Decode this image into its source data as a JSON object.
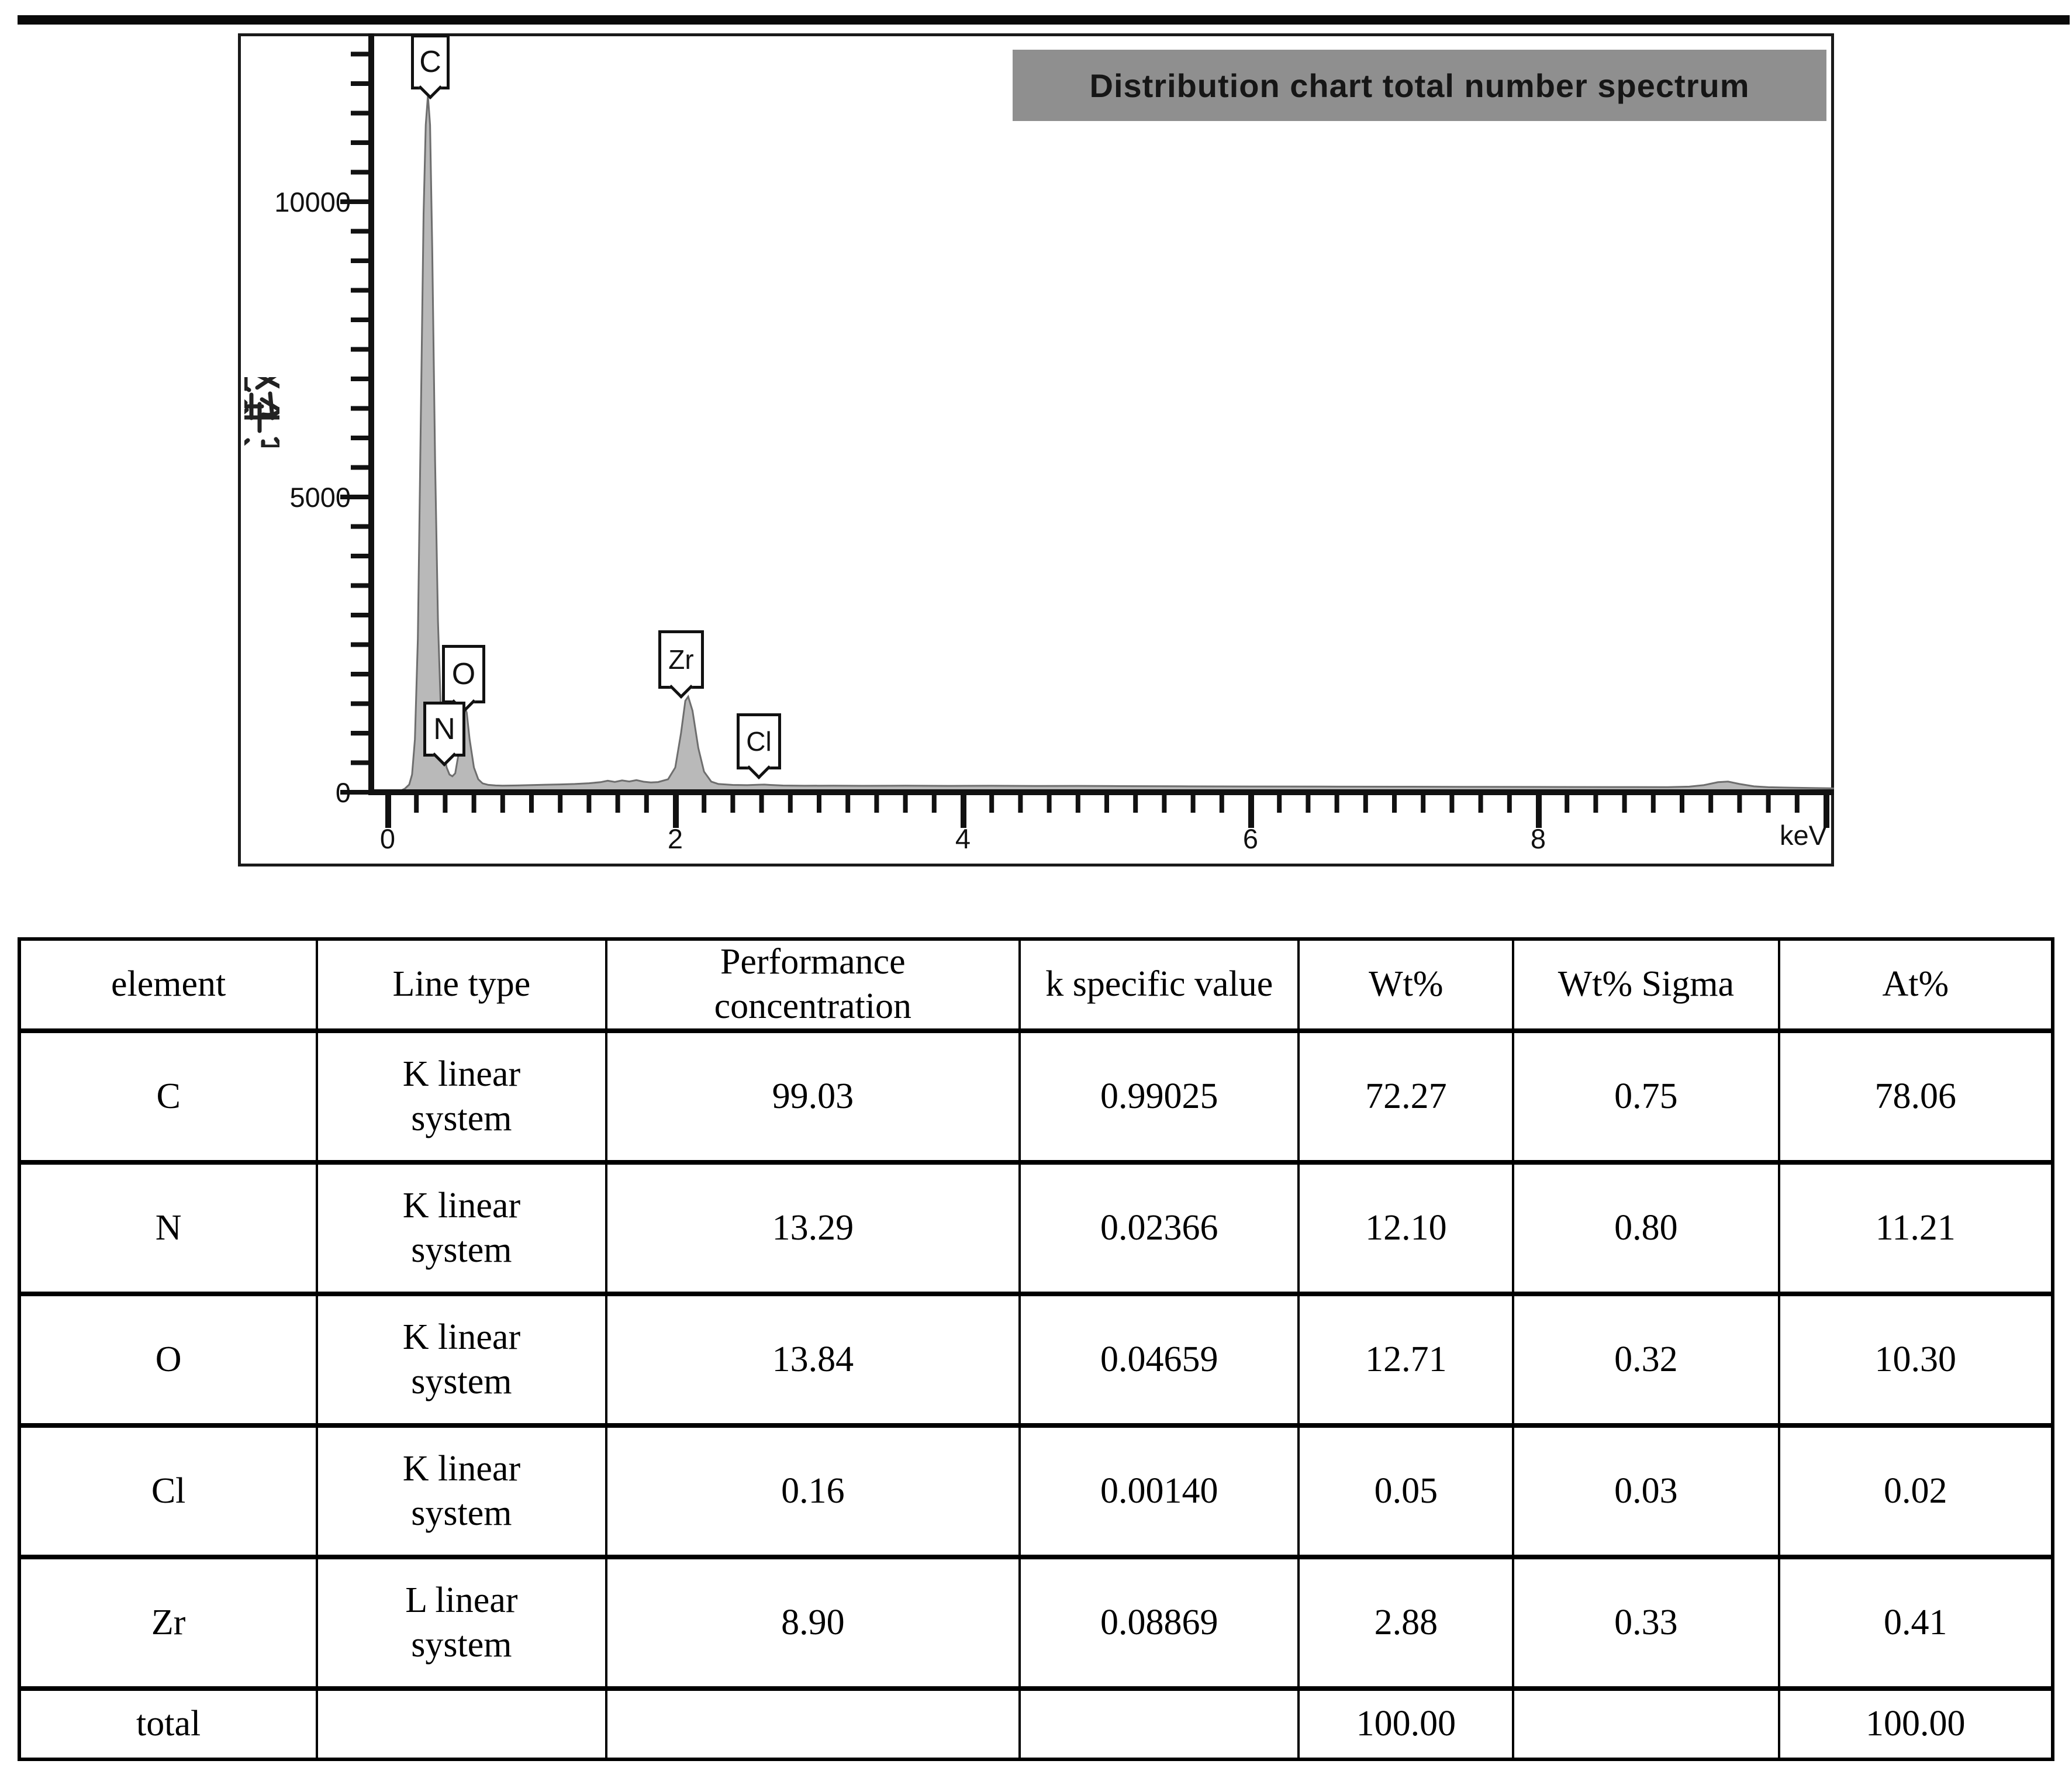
{
  "figure": {
    "top_rule_color": "#0a0a0a",
    "background": "#ffffff"
  },
  "chart": {
    "title": "Distribution chart total number spectrum",
    "title_bg": "#8f8f8f",
    "title_color": "#161616",
    "ylabel": "计数",
    "x_unit_label": "keV",
    "x_tick_labels": [
      "0",
      "2",
      "4",
      "6",
      "8"
    ],
    "y_tick_labels": [
      "0",
      "5000",
      "10000"
    ],
    "spectrum_fill": "#b9b9b9",
    "spectrum_stroke": "#6e6e6e",
    "axis_color": "#111111"
  },
  "chart_data": {
    "type": "area",
    "title": "Distribution chart total number spectrum",
    "xlabel": "keV",
    "ylabel": "计数",
    "xlim": [
      0,
      10.05
    ],
    "ylim": [
      0,
      12850
    ],
    "x_major_ticks": [
      0,
      2,
      4,
      6,
      8,
      10
    ],
    "x_minor_step": 0.2,
    "y_major_ticks": [
      0,
      5000,
      10000
    ],
    "y_minor_step": 500,
    "grid": false,
    "legend": false,
    "annotations": [
      {
        "label": "C",
        "x_kev": 0.28,
        "peak_counts": 11800
      },
      {
        "label": "N",
        "x_kev": 0.39,
        "peak_counts": 700
      },
      {
        "label": "O",
        "x_kev": 0.53,
        "peak_counts": 1480
      },
      {
        "label": "Zr",
        "x_kev": 2.08,
        "peak_counts": 1620
      },
      {
        "label": "Cl",
        "x_kev": 2.62,
        "peak_counts": 130
      }
    ],
    "series": [
      {
        "name": "EDS spectrum counts",
        "points": [
          [
            0.03,
            0
          ],
          [
            0.06,
            5
          ],
          [
            0.09,
            25
          ],
          [
            0.12,
            60
          ],
          [
            0.15,
            130
          ],
          [
            0.17,
            300
          ],
          [
            0.19,
            900
          ],
          [
            0.21,
            2600
          ],
          [
            0.23,
            6200
          ],
          [
            0.25,
            9800
          ],
          [
            0.265,
            11300
          ],
          [
            0.28,
            11800
          ],
          [
            0.295,
            11300
          ],
          [
            0.31,
            9200
          ],
          [
            0.33,
            5600
          ],
          [
            0.35,
            2900
          ],
          [
            0.37,
            1400
          ],
          [
            0.39,
            700
          ],
          [
            0.41,
            420
          ],
          [
            0.43,
            300
          ],
          [
            0.45,
            270
          ],
          [
            0.47,
            320
          ],
          [
            0.49,
            600
          ],
          [
            0.51,
            1150
          ],
          [
            0.53,
            1480
          ],
          [
            0.55,
            1350
          ],
          [
            0.57,
            900
          ],
          [
            0.6,
            420
          ],
          [
            0.63,
            220
          ],
          [
            0.66,
            150
          ],
          [
            0.7,
            125
          ],
          [
            0.75,
            115
          ],
          [
            0.8,
            112
          ],
          [
            0.9,
            115
          ],
          [
            1.0,
            122
          ],
          [
            1.1,
            128
          ],
          [
            1.2,
            133
          ],
          [
            1.3,
            140
          ],
          [
            1.4,
            152
          ],
          [
            1.48,
            170
          ],
          [
            1.53,
            195
          ],
          [
            1.58,
            175
          ],
          [
            1.63,
            200
          ],
          [
            1.68,
            182
          ],
          [
            1.73,
            205
          ],
          [
            1.78,
            178
          ],
          [
            1.83,
            165
          ],
          [
            1.88,
            172
          ],
          [
            1.95,
            220
          ],
          [
            2.0,
            420
          ],
          [
            2.04,
            1000
          ],
          [
            2.07,
            1550
          ],
          [
            2.09,
            1620
          ],
          [
            2.12,
            1380
          ],
          [
            2.16,
            750
          ],
          [
            2.2,
            350
          ],
          [
            2.25,
            180
          ],
          [
            2.3,
            140
          ],
          [
            2.4,
            124
          ],
          [
            2.5,
            120
          ],
          [
            2.58,
            128
          ],
          [
            2.62,
            130
          ],
          [
            2.66,
            124
          ],
          [
            2.75,
            114
          ],
          [
            2.9,
            110
          ],
          [
            3.1,
            112
          ],
          [
            3.3,
            109
          ],
          [
            3.6,
            111
          ],
          [
            3.9,
            108
          ],
          [
            4.2,
            110
          ],
          [
            4.5,
            106
          ],
          [
            4.8,
            108
          ],
          [
            5.1,
            104
          ],
          [
            5.5,
            101
          ],
          [
            6.0,
            98
          ],
          [
            6.5,
            96
          ],
          [
            7.0,
            94
          ],
          [
            7.5,
            92
          ],
          [
            8.0,
            90
          ],
          [
            8.5,
            88
          ],
          [
            8.9,
            86
          ],
          [
            9.05,
            95
          ],
          [
            9.15,
            120
          ],
          [
            9.25,
            170
          ],
          [
            9.32,
            180
          ],
          [
            9.4,
            140
          ],
          [
            9.5,
            100
          ],
          [
            9.6,
            85
          ],
          [
            9.75,
            78
          ],
          [
            9.9,
            72
          ],
          [
            10.0,
            68
          ],
          [
            10.05,
            65
          ]
        ]
      }
    ]
  },
  "table": {
    "headers": {
      "element": "element",
      "line_type": "Line type",
      "perf": "Performance concentration",
      "k": "k specific value",
      "wt": "Wt%",
      "sigma": "Wt% Sigma",
      "at": "At%"
    },
    "rows": [
      {
        "element": "C",
        "line_l1": "K linear",
        "line_l2": "system",
        "perf": "99.03",
        "k": "0.99025",
        "wt": "72.27",
        "sigma": "0.75",
        "at": "78.06"
      },
      {
        "element": "N",
        "line_l1": "K linear",
        "line_l2": "system",
        "perf": "13.29",
        "k": "0.02366",
        "wt": "12.10",
        "sigma": "0.80",
        "at": "11.21"
      },
      {
        "element": "O",
        "line_l1": "K linear",
        "line_l2": "system",
        "perf": "13.84",
        "k": "0.04659",
        "wt": "12.71",
        "sigma": "0.32",
        "at": "10.30"
      },
      {
        "element": "Cl",
        "line_l1": "K linear",
        "line_l2": "system",
        "perf": "0.16",
        "k": "0.00140",
        "wt": "0.05",
        "sigma": "0.03",
        "at": "0.02"
      },
      {
        "element": "Zr",
        "line_l1": "L linear",
        "line_l2": "system",
        "perf": "8.90",
        "k": "0.08869",
        "wt": "2.88",
        "sigma": "0.33",
        "at": "0.41"
      },
      {
        "element": "total",
        "line_l1": "",
        "line_l2": "",
        "perf": "",
        "k": "",
        "wt": "100.00",
        "sigma": "",
        "at": "100.00"
      }
    ]
  }
}
